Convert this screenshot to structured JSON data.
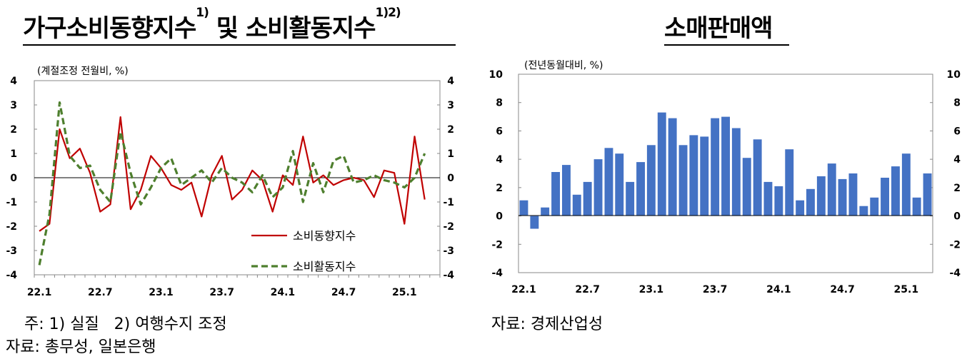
{
  "left_title": {
    "main": "가구소비동향지수",
    "sup1": "1)",
    "mid": " 및 소비활동지수",
    "sup2": "1)2)"
  },
  "right_title": "소매판매액",
  "notes": {
    "left_line1": "주: 1) 실질   2) 여행수지 조정",
    "left_line2": "자료: 총무성, 일본은행",
    "right_line1": "자료: 경제산업성"
  },
  "chart_data": [
    {
      "type": "line",
      "unit_label": "(계절조정 전월비, %)",
      "ylim": [
        -4,
        4
      ],
      "yticks": [
        4,
        3,
        2,
        1,
        0,
        -1,
        -2,
        -3,
        -4
      ],
      "x_tick_labels": [
        "22.1",
        "22.7",
        "23.1",
        "23.7",
        "24.1",
        "24.7",
        "25.1"
      ],
      "x_tick_months": [
        0,
        6,
        12,
        18,
        24,
        30,
        36
      ],
      "n_months": 40,
      "legend_position": "bottom-right",
      "series": [
        {
          "name": "소비동향지수",
          "color": "#c00000",
          "style": "solid",
          "values": [
            -2.2,
            -1.9,
            2.0,
            0.8,
            1.2,
            0.2,
            -1.4,
            -1.1,
            2.5,
            -1.3,
            -0.5,
            0.9,
            0.4,
            -0.3,
            -0.5,
            -0.2,
            -1.6,
            0.1,
            0.9,
            -0.9,
            -0.5,
            0.3,
            -0.1,
            -1.4,
            0.1,
            -0.3,
            1.7,
            -0.2,
            0.1,
            -0.3,
            -0.1,
            0.0,
            -0.1,
            -0.8,
            0.3,
            0.2,
            -1.9,
            1.7,
            -0.9
          ]
        },
        {
          "name": "소비활동지수",
          "color": "#4e7f2e",
          "style": "dashed",
          "values": [
            -3.6,
            -1.5,
            3.1,
            0.9,
            0.4,
            0.5,
            -0.5,
            -1.0,
            1.9,
            0.2,
            -1.1,
            -0.4,
            0.4,
            0.8,
            -0.3,
            0.0,
            0.3,
            -0.2,
            0.4,
            0.0,
            -0.2,
            -0.6,
            0.1,
            -0.8,
            -0.4,
            1.1,
            -1.0,
            0.6,
            -0.6,
            0.7,
            0.9,
            -0.2,
            -0.1,
            0.1,
            -0.1,
            -0.2,
            -0.4,
            0.0,
            1.0
          ]
        }
      ]
    },
    {
      "type": "bar",
      "unit_label": "(전년동월대비, %)",
      "ylim": [
        -4,
        10
      ],
      "yticks": [
        10,
        8,
        6,
        4,
        2,
        0,
        -2,
        -4
      ],
      "x_tick_labels": [
        "22.1",
        "22.7",
        "23.1",
        "23.7",
        "24.1",
        "24.7",
        "25.1"
      ],
      "x_tick_months": [
        0,
        6,
        12,
        18,
        24,
        30,
        36
      ],
      "color": "#4472c4",
      "values": [
        1.1,
        -0.9,
        0.6,
        3.1,
        3.6,
        1.5,
        2.4,
        4.0,
        4.8,
        4.4,
        2.4,
        3.8,
        5.0,
        7.3,
        6.9,
        5.0,
        5.7,
        5.6,
        6.9,
        7.0,
        6.2,
        4.1,
        5.4,
        2.4,
        2.1,
        4.7,
        1.1,
        1.9,
        2.8,
        3.7,
        2.6,
        3.0,
        0.7,
        1.3,
        2.7,
        3.5,
        4.4,
        1.3,
        3.0
      ]
    }
  ]
}
